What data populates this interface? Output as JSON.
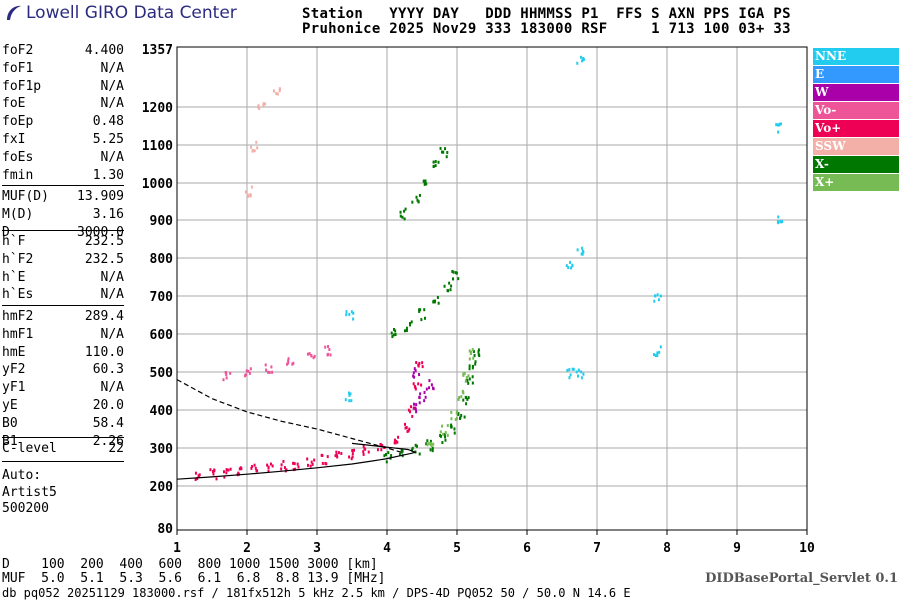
{
  "logo": {
    "text": "Lowell GIRO Data Center"
  },
  "header": {
    "line1": "Station   YYYY DAY   DDD HHMMSS P1  FFS S AXN PPS IGA PS",
    "line2": "Pruhonice 2025 Nov29 333 183000 RSF     1 713 100 03+ 33"
  },
  "params": [
    {
      "label": "foF2",
      "value": "4.400"
    },
    {
      "label": "foF1",
      "value": "N/A"
    },
    {
      "label": "foF1p",
      "value": "N/A"
    },
    {
      "label": "foE",
      "value": "N/A"
    },
    {
      "label": "foEp",
      "value": "0.48"
    },
    {
      "label": "fxI",
      "value": "5.25"
    },
    {
      "label": "foEs",
      "value": "N/A"
    },
    {
      "label": "fmin",
      "value": "1.30"
    },
    {
      "label": "MUF(D)",
      "value": "13.909"
    },
    {
      "label": "M(D)",
      "value": "3.16"
    },
    {
      "label": "D",
      "value": "3000.0"
    },
    {
      "label": "h`F",
      "value": "232.5"
    },
    {
      "label": "h`F2",
      "value": "232.5"
    },
    {
      "label": "h`E",
      "value": "N/A"
    },
    {
      "label": "h`Es",
      "value": "N/A"
    },
    {
      "label": "hmF2",
      "value": "289.4"
    },
    {
      "label": "hmF1",
      "value": "N/A"
    },
    {
      "label": "hmE",
      "value": "110.0"
    },
    {
      "label": "yF2",
      "value": "60.3"
    },
    {
      "label": "yF1",
      "value": "N/A"
    },
    {
      "label": "yE",
      "value": "20.0"
    },
    {
      "label": "B0",
      "value": "58.4"
    },
    {
      "label": "B1",
      "value": "2.26"
    },
    {
      "label": "C-level",
      "value": "22"
    }
  ],
  "auto": {
    "label": "Auto:",
    "system": "Artist5",
    "version": "500200"
  },
  "legend": [
    {
      "label": "NNE",
      "color": "#22ccee"
    },
    {
      "label": "E",
      "color": "#3399ff"
    },
    {
      "label": "W",
      "color": "#aa00aa"
    },
    {
      "label": "Vo-",
      "color": "#ee5599"
    },
    {
      "label": "Vo+",
      "color": "#ee0055"
    },
    {
      "label": "SSW",
      "color": "#f2b0a8"
    },
    {
      "label": "X-",
      "color": "#007700"
    },
    {
      "label": "X+",
      "color": "#77bb55"
    }
  ],
  "bottom": {
    "distance_line": "D    100  200  400  600  800 1000 1500 3000 [km]",
    "muf_line": "MUF  5.0  5.1  5.3  5.6  6.1  6.8  8.8 13.9 [MHz]",
    "footer": "db pq052 20251129 183000.rsf / 181fx512h 5 kHz 2.5 km / DPS-4D PQ052 50 / 50.0 N 14.6 E",
    "credit": "DIDBasePortal_Servlet 0.1"
  },
  "chart_data": {
    "type": "scatter",
    "x_ticks": [
      "1",
      "2",
      "3",
      "4",
      "5",
      "6",
      "7",
      "8",
      "9",
      "10"
    ],
    "y_ticks": [
      "80",
      "200",
      "300",
      "400",
      "500",
      "600",
      "700",
      "800",
      "900",
      "1000",
      "1100",
      "1200",
      "1357"
    ],
    "xlim": [
      1,
      10
    ],
    "ylim": [
      80,
      1357
    ],
    "grid": true,
    "legend_placement": "right",
    "traces": [
      {
        "series": "Vo+",
        "points": [
          [
            1.3,
            231
          ],
          [
            1.5,
            235
          ],
          [
            1.7,
            240
          ],
          [
            1.9,
            245
          ],
          [
            2.1,
            248
          ],
          [
            2.3,
            252
          ],
          [
            2.5,
            256
          ],
          [
            2.7,
            260
          ],
          [
            2.9,
            266
          ],
          [
            3.1,
            272
          ],
          [
            3.3,
            280
          ],
          [
            3.5,
            287
          ],
          [
            3.7,
            297
          ],
          [
            3.9,
            310
          ],
          [
            4.1,
            330
          ],
          [
            4.25,
            355
          ],
          [
            4.35,
            400
          ],
          [
            4.42,
            470
          ],
          [
            4.45,
            520
          ]
        ]
      },
      {
        "series": "Vo-",
        "points": [
          [
            1.7,
            490
          ],
          [
            2.0,
            500
          ],
          [
            2.3,
            515
          ],
          [
            2.6,
            530
          ],
          [
            2.9,
            548
          ],
          [
            3.15,
            560
          ]
        ]
      },
      {
        "series": "X-",
        "points": [
          [
            4.0,
            280
          ],
          [
            4.2,
            288
          ],
          [
            4.4,
            298
          ],
          [
            4.6,
            310
          ],
          [
            4.8,
            330
          ],
          [
            4.95,
            355
          ],
          [
            5.05,
            390
          ],
          [
            5.12,
            430
          ],
          [
            5.18,
            480
          ],
          [
            5.22,
            520
          ],
          [
            5.25,
            555
          ],
          [
            4.1,
            605
          ],
          [
            4.3,
            625
          ],
          [
            4.5,
            655
          ],
          [
            4.7,
            690
          ],
          [
            4.85,
            725
          ],
          [
            4.95,
            760
          ],
          [
            4.2,
            920
          ],
          [
            4.4,
            960
          ],
          [
            4.55,
            1000
          ],
          [
            4.7,
            1050
          ],
          [
            4.8,
            1085
          ]
        ]
      },
      {
        "series": "X+",
        "points": [
          [
            4.6,
            320
          ],
          [
            4.8,
            350
          ],
          [
            4.95,
            390
          ],
          [
            5.05,
            440
          ],
          [
            5.12,
            490
          ],
          [
            5.2,
            550
          ]
        ]
      },
      {
        "series": "NNE",
        "points": [
          [
            6.6,
            500
          ],
          [
            6.6,
            790
          ],
          [
            6.75,
            500
          ],
          [
            6.75,
            820
          ],
          [
            6.75,
            1330
          ],
          [
            3.45,
            440
          ],
          [
            3.45,
            650
          ],
          [
            9.6,
            900
          ],
          [
            9.6,
            1150
          ],
          [
            7.85,
            560
          ],
          [
            7.85,
            700
          ]
        ]
      },
      {
        "series": "W",
        "points": [
          [
            4.4,
            410
          ],
          [
            4.5,
            440
          ],
          [
            4.6,
            470
          ],
          [
            4.4,
            500
          ]
        ]
      },
      {
        "series": "SSW",
        "points": [
          [
            2.0,
            980
          ],
          [
            2.1,
            1100
          ],
          [
            2.2,
            1200
          ],
          [
            2.4,
            1250
          ]
        ]
      }
    ],
    "model_profile": [
      [
        1.0,
        218
      ],
      [
        1.5,
        224
      ],
      [
        2.0,
        231
      ],
      [
        2.5,
        239
      ],
      [
        3.0,
        248
      ],
      [
        3.5,
        258
      ],
      [
        3.8,
        266
      ],
      [
        4.0,
        272
      ],
      [
        4.2,
        280
      ],
      [
        4.35,
        286
      ],
      [
        4.4,
        289
      ],
      [
        4.3,
        296
      ],
      [
        4.0,
        302
      ],
      [
        3.5,
        312
      ]
    ],
    "model_profile_dashed": [
      [
        1.0,
        480
      ],
      [
        1.5,
        430
      ],
      [
        2.0,
        395
      ],
      [
        2.5,
        370
      ],
      [
        3.0,
        350
      ],
      [
        3.5,
        325
      ],
      [
        4.0,
        300
      ],
      [
        4.2,
        289
      ]
    ]
  }
}
